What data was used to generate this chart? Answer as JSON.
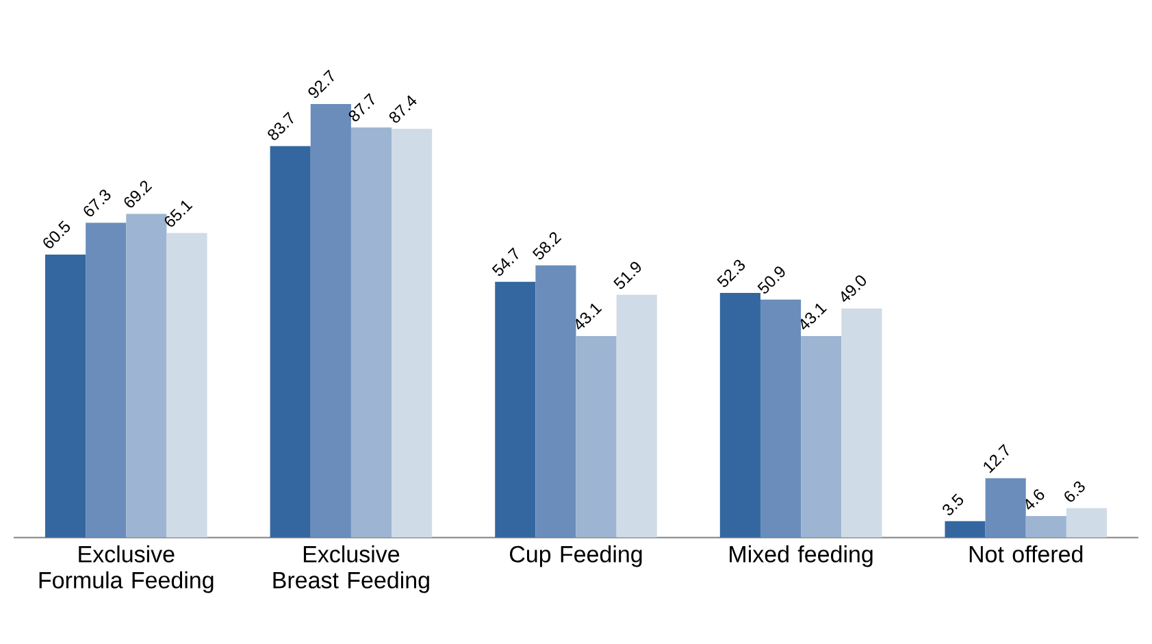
{
  "chart_data": {
    "type": "bar",
    "categories": [
      "Exclusive Formula Feeding",
      "Exclusive Breast Feeding",
      "Cup Feeding",
      "Mixed feeding",
      "Not offered"
    ],
    "series": [
      {
        "color": "#34679f",
        "values": [
          60.5,
          83.7,
          54.7,
          52.3,
          3.5
        ],
        "value_labels": [
          "60.5",
          "83.7",
          "54.7",
          "52.3",
          "3.5"
        ]
      },
      {
        "color": "#6a8dbb",
        "values": [
          67.3,
          92.7,
          58.2,
          50.9,
          12.7
        ],
        "value_labels": [
          "67.3",
          "92.7",
          "58.2",
          "50.9",
          "12.7"
        ]
      },
      {
        "color": "#9db5d2",
        "values": [
          69.2,
          87.7,
          43.1,
          43.1,
          4.6
        ],
        "value_labels": [
          "69.2",
          "87.7",
          "43.1",
          "43.1",
          "4.6"
        ]
      },
      {
        "color": "#cfdbe6",
        "values": [
          65.1,
          87.4,
          51.9,
          49.0,
          6.3
        ],
        "value_labels": [
          "65.1",
          "87.4",
          "51.9",
          "49.0",
          "6.3"
        ]
      }
    ]
  }
}
